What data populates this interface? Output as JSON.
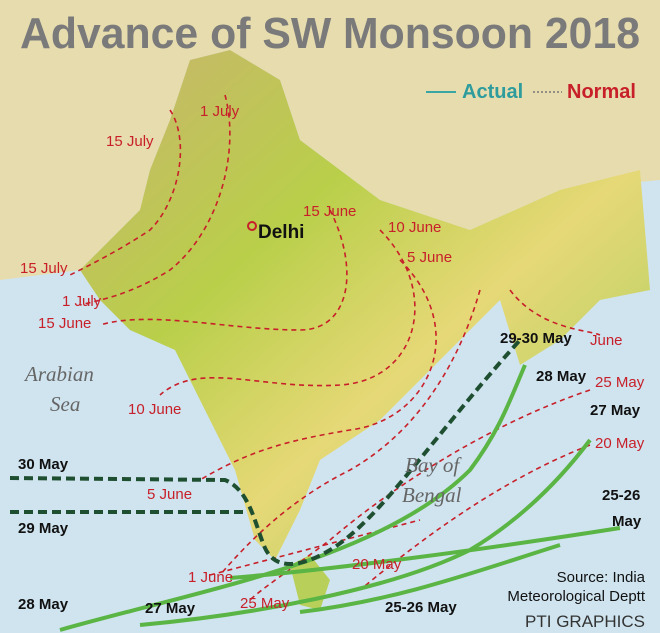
{
  "title": "Advance of SW Monsoon 2018",
  "legend": {
    "actual": "Actual",
    "normal": "Normal"
  },
  "places": {
    "delhi": "Delhi",
    "sea_1": "Arabian",
    "sea_2": "Sea",
    "bay_1": "Bay of",
    "bay_2": "Bengal"
  },
  "normal_labels": [
    "1 July",
    "15 July",
    "15 June",
    "10 June",
    "5 June",
    "15 July",
    "1 July",
    "15 June",
    "10 June",
    "5 June",
    "1 June",
    "25 May",
    "20 May",
    "June",
    "25 May",
    "20 May"
  ],
  "actual_labels": [
    "29-30 May",
    "28 May",
    "27 May",
    "25-26",
    "May",
    "30 May",
    "29 May",
    "28 May",
    "27 May",
    "25-26 May"
  ],
  "source": {
    "line_1": "Source: India",
    "line_2": "Meteorological Deptt"
  },
  "credit": "PTI GRAPHICS"
}
